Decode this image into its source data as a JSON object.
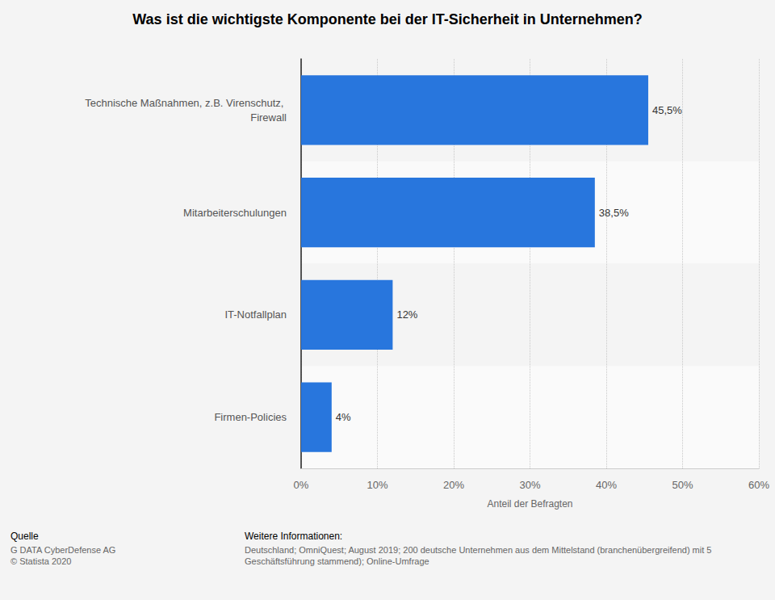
{
  "chart_data": {
    "type": "bar",
    "orientation": "horizontal",
    "title": "Was ist die wichtigste Komponente bei der IT-Sicherheit in Unternehmen?",
    "x_label": "Anteil der Befragten",
    "categories": [
      "Technische Maßnahmen, z.B. Virenschutz, Firewall",
      "Mitarbeiterschulungen",
      "IT-Notfallplan",
      "Firmen-Policies"
    ],
    "values": [
      45.5,
      38.5,
      12,
      4
    ],
    "value_labels": [
      "45,5%",
      "38,5%",
      "12%",
      "4%"
    ],
    "color": "#2876dd",
    "data_labels": true,
    "grid": true,
    "xlim": [
      0,
      60
    ],
    "xticks": [
      {
        "value": 0,
        "label": "0%"
      },
      {
        "value": 10,
        "label": "10%"
      },
      {
        "value": 20,
        "label": "20%"
      },
      {
        "value": 30,
        "label": "30%"
      },
      {
        "value": 40,
        "label": "40%"
      },
      {
        "value": 50,
        "label": "50%"
      },
      {
        "value": 60,
        "label": "60%"
      }
    ],
    "source": {
      "label": "Quelle",
      "lines": [
        "G DATA CyberDefense AG",
        "© Statista 2020"
      ]
    },
    "info": {
      "label": "Weitere Informationen:",
      "lines": [
        "Deutschland; OmniQuest; August 2019; 200 deutsche Unternehmen aus dem Mittelstand (branchenübergreifend) mit 5",
        "Geschäftsführung stammend); Online-Umfrage"
      ]
    }
  }
}
